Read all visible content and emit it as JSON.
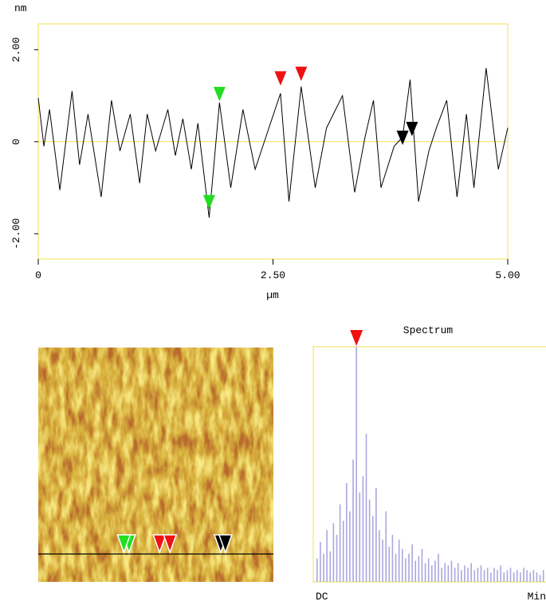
{
  "chart_data": [
    {
      "type": "line",
      "y_unit": "nm",
      "x_label": "µm",
      "x": [
        0,
        0.06,
        0.12,
        0.23,
        0.36,
        0.44,
        0.53,
        0.67,
        0.78,
        0.87,
        0.98,
        1.08,
        1.16,
        1.25,
        1.38,
        1.46,
        1.54,
        1.63,
        1.7,
        1.82,
        1.93,
        2.05,
        2.18,
        2.31,
        2.44,
        2.58,
        2.67,
        2.8,
        2.95,
        3.07,
        3.24,
        3.37,
        3.48,
        3.57,
        3.65,
        3.79,
        3.88,
        3.96,
        4.05,
        4.16,
        4.24,
        4.35,
        4.46,
        4.56,
        4.64,
        4.77,
        4.9,
        5.0
      ],
      "series": [
        {
          "color": "#000000",
          "values": [
            0.95,
            -0.1,
            0.7,
            -1.05,
            1.1,
            -0.5,
            0.6,
            -1.2,
            0.9,
            -0.2,
            0.6,
            -0.9,
            0.6,
            -0.2,
            0.7,
            -0.3,
            0.5,
            -0.6,
            0.4,
            -1.65,
            0.85,
            -1.0,
            0.7,
            -0.6,
            0.2,
            1.05,
            -1.3,
            1.2,
            -1.0,
            0.3,
            1.0,
            -1.1,
            0.1,
            0.9,
            -1.0,
            -0.1,
            0.1,
            1.35,
            -1.3,
            -0.2,
            0.3,
            0.9,
            -1.2,
            0.6,
            -1.0,
            1.6,
            -0.6,
            0.3
          ]
        }
      ],
      "xlim": [
        0,
        5
      ],
      "xticks": [
        0,
        {
          "value": 2.5,
          "label": "2.50"
        },
        {
          "value": 5,
          "label": "5.00"
        }
      ],
      "ylim": [
        -2.55,
        2.56
      ],
      "yticks": [
        {
          "value": -2,
          "label": "-2.00"
        },
        0,
        {
          "value": 2,
          "label": "2.00"
        }
      ],
      "zero_line_color": "#f0e050",
      "frame_color": "#f0e050",
      "cursors": [
        {
          "color": "#22dd22",
          "x": 1.93,
          "y": 0.88
        },
        {
          "color": "#22dd22",
          "x": 1.82,
          "y": -1.47
        },
        {
          "color": "#ee1111",
          "x": 2.58,
          "y": 1.22
        },
        {
          "color": "#ee1111",
          "x": 2.8,
          "y": 1.32
        },
        {
          "color": "#000000",
          "x": 3.88,
          "y": -0.07
        },
        {
          "color": "#000000",
          "x": 3.98,
          "y": 0.12
        }
      ]
    },
    {
      "type": "bar",
      "title": "Spectrum",
      "x_start_label": "DC",
      "x_end_label": "Min",
      "color": "#a8a8e0",
      "frame_color": "#f0e050",
      "ylim": [
        0,
        100
      ],
      "values": [
        10,
        17,
        12,
        22,
        13,
        25,
        20,
        33,
        26,
        42,
        30,
        52,
        100,
        38,
        45,
        63,
        35,
        28,
        40,
        22,
        18,
        30,
        15,
        20,
        12,
        18,
        14,
        10,
        12,
        16,
        9,
        11,
        14,
        8,
        10,
        7,
        9,
        12,
        6,
        8,
        7,
        9,
        6,
        8,
        5,
        7,
        6,
        8,
        5,
        6,
        7,
        5,
        6,
        4,
        6,
        5,
        7,
        4,
        5,
        6,
        4,
        5,
        4,
        6,
        5,
        4,
        5,
        4,
        3,
        5
      ],
      "cursor": {
        "color": "#ee1111",
        "at": 12
      }
    }
  ]
}
